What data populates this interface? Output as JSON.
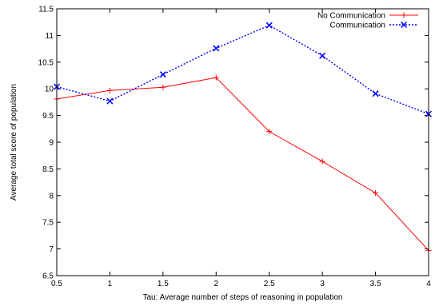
{
  "chart_data": {
    "type": "line",
    "title": "",
    "xlabel": "Tau: Average number of steps of reasoning in population",
    "ylabel": "Average total score of population",
    "xlim": [
      0.5,
      4
    ],
    "ylim": [
      6.5,
      11.5
    ],
    "x_ticks": [
      "0.5",
      "1",
      "1.5",
      "2",
      "2.5",
      "3",
      "3.5",
      "4"
    ],
    "y_ticks": [
      "6.5",
      "7",
      "7.5",
      "8",
      "8.5",
      "9",
      "9.5",
      "10",
      "10.5",
      "11",
      "11.5"
    ],
    "legend_position": "top-right",
    "grid": false,
    "series": [
      {
        "name": "No Communication",
        "color": "#ff0000",
        "line_style": "solid",
        "marker": "plus",
        "x": [
          0.5,
          1,
          1.5,
          2,
          2.5,
          3,
          3.5,
          4
        ],
        "y": [
          9.81,
          9.97,
          10.03,
          10.21,
          9.2,
          8.64,
          8.05,
          6.97
        ]
      },
      {
        "name": "Communication",
        "color": "#0000ff",
        "line_style": "dotted",
        "marker": "cross",
        "x": [
          0.5,
          1,
          1.5,
          2,
          2.5,
          3,
          3.5,
          4
        ],
        "y": [
          10.04,
          9.77,
          10.27,
          10.76,
          11.19,
          10.62,
          9.91,
          9.53
        ]
      }
    ]
  }
}
